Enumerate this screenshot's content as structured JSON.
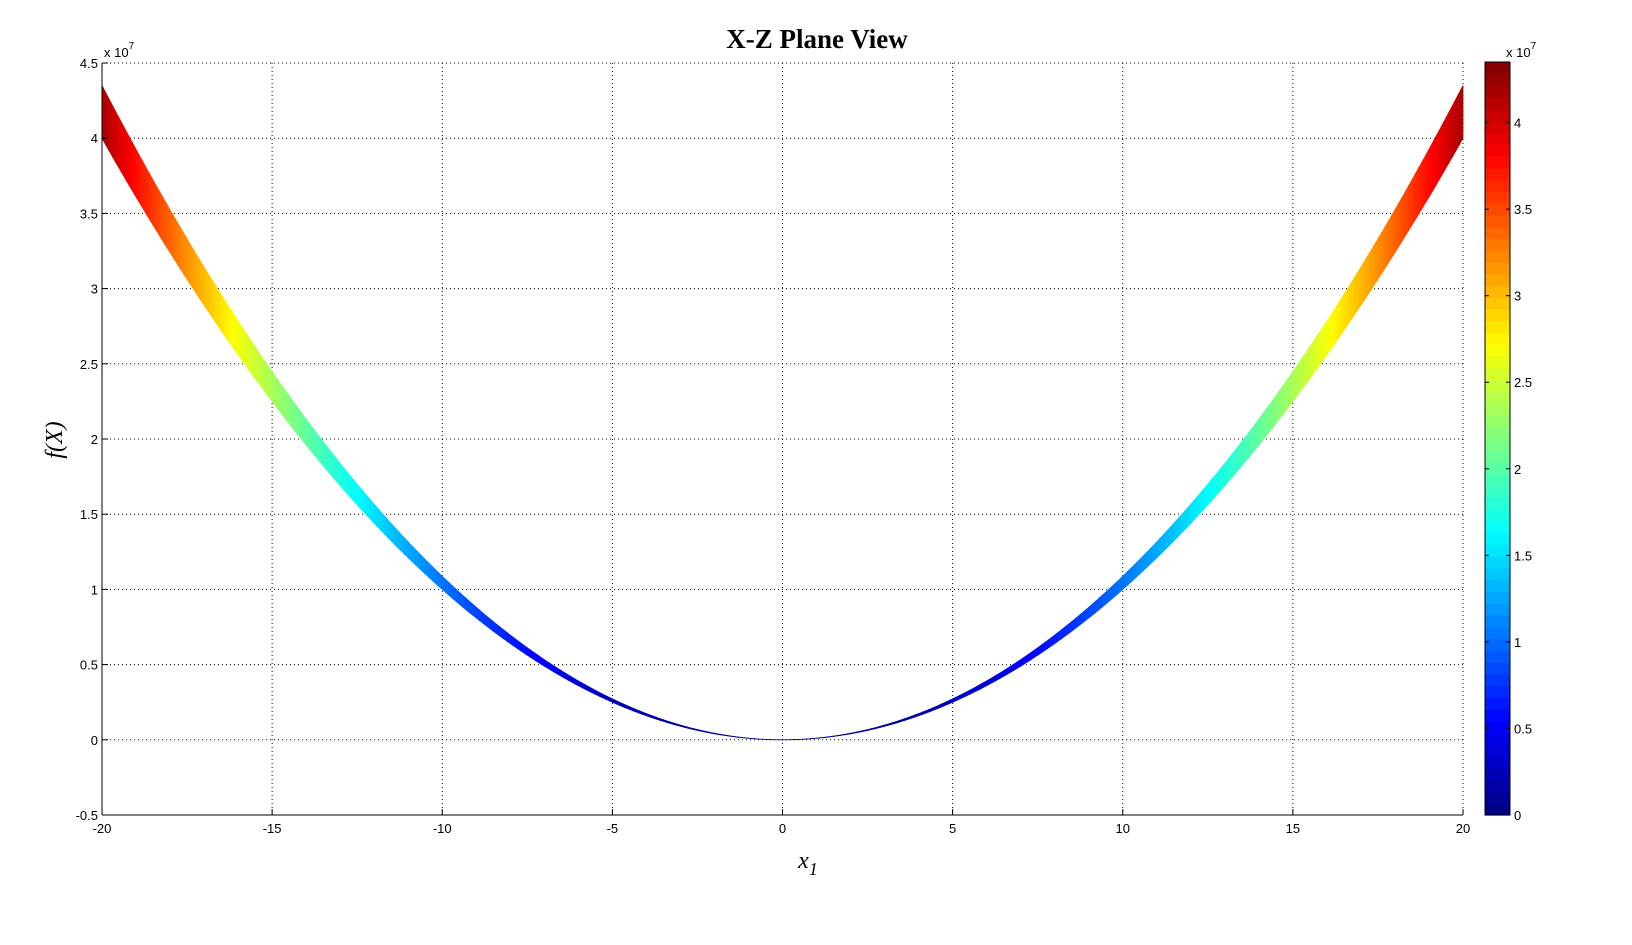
{
  "chart_data": {
    "type": "area",
    "title": "X-Z Plane View",
    "xlabel": "x",
    "xlabel_subscript": "1",
    "ylabel": "f(X)",
    "xlim": [
      -20,
      20
    ],
    "ylim": [
      -0.5,
      4.5
    ],
    "y_exponent_label": "x 10",
    "y_exponent": "7",
    "xticks": [
      "-20",
      "-15",
      "-10",
      "-5",
      "0",
      "5",
      "10",
      "15",
      "20"
    ],
    "yticks": [
      "-0.5",
      "0",
      "0.5",
      "1",
      "1.5",
      "2",
      "2.5",
      "3",
      "3.5",
      "4",
      "4.5"
    ],
    "grid": true,
    "colormap": "jet",
    "series": [
      {
        "description_values": "f lower bound = 1.0e5*x1^2, upper bound ≈ 1.09e5*x1^2 (units 1e7 on axis)",
        "x": [
          -20,
          -15,
          -10,
          -5,
          0,
          5,
          10,
          15,
          20
        ],
        "lower": [
          4.0,
          2.25,
          1.0,
          0.25,
          0,
          0.25,
          1.0,
          2.25,
          4.0
        ],
        "upper": [
          4.35,
          2.45,
          1.09,
          0.27,
          0,
          0.27,
          1.09,
          2.45,
          4.35
        ]
      }
    ],
    "colorbar": {
      "clim": [
        0,
        4.35
      ],
      "ticks": [
        "0",
        "0.5",
        "1",
        "1.5",
        "2",
        "2.5",
        "3",
        "3.5",
        "4"
      ],
      "exponent_label": "x 10",
      "exponent": "7"
    }
  }
}
